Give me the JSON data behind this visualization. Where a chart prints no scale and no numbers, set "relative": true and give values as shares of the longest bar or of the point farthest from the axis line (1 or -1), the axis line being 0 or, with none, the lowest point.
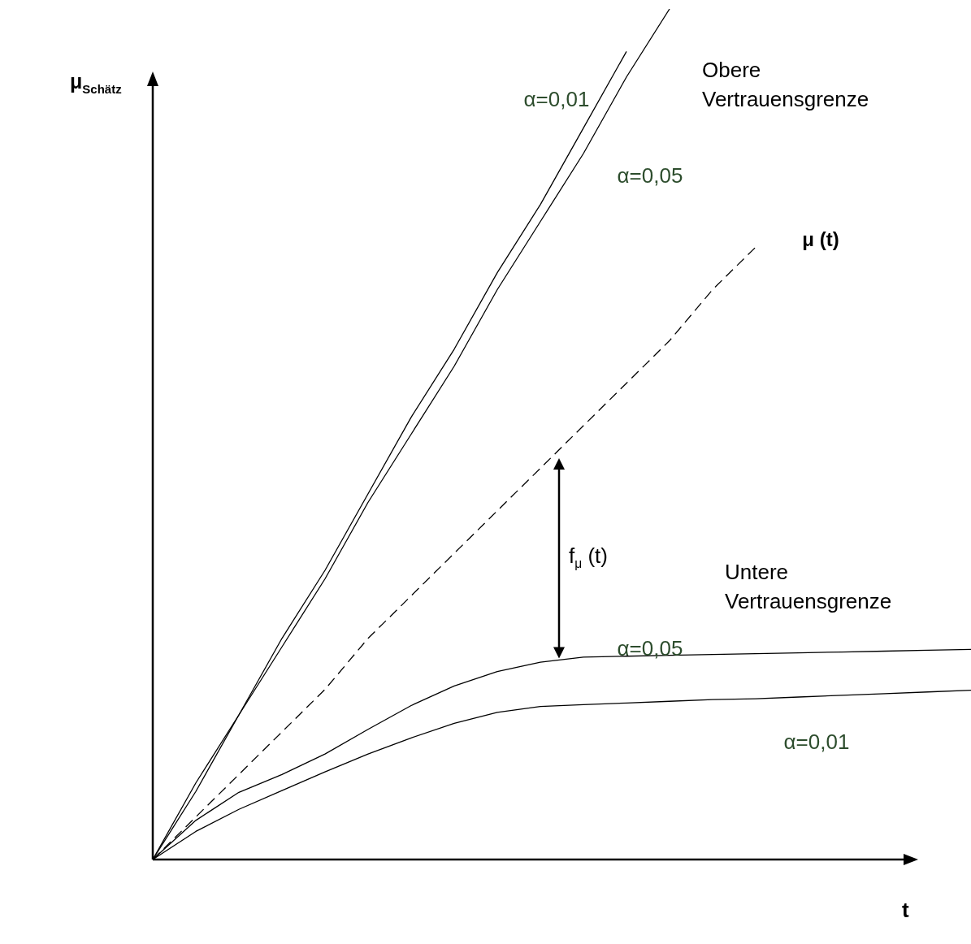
{
  "chart_data": {
    "type": "line",
    "relative": true,
    "xlabel": "t",
    "ylabel": "μ$_{Schätz}$",
    "categories": [
      null,
      null,
      null,
      null,
      null,
      null,
      null,
      null,
      null,
      null,
      null,
      null,
      null,
      null,
      null,
      null,
      null,
      null,
      null,
      null
    ],
    "series": [
      {
        "name": "α=0,01",
        "color": "#000000",
        "values": [
          0,
          0.09,
          0.17,
          0.26,
          0.34,
          0.43,
          0.52,
          0.6,
          0.69,
          0.77,
          0.86,
          0.95,
          null,
          null,
          null,
          null,
          null,
          null,
          null,
          null
        ]
      },
      {
        "name": "α=0,05",
        "color": "#000000",
        "values": [
          0,
          0.08,
          0.17,
          0.25,
          0.33,
          0.42,
          0.5,
          0.58,
          0.67,
          0.75,
          0.83,
          0.92,
          1,
          null,
          null,
          null,
          null,
          null,
          null,
          null
        ]
      },
      {
        "name": "μ (t)",
        "color": "#000000",
        "line_style": "dashed",
        "values": [
          0,
          0.05,
          0.1,
          0.15,
          0.2,
          0.26,
          0.31,
          0.36,
          0.41,
          0.46,
          0.51,
          0.56,
          0.61,
          0.67,
          0.72,
          null,
          null,
          null,
          null,
          null
        ]
      },
      {
        "name": "α=0,05",
        "color": "#000000",
        "values": [
          0,
          0.046,
          0.079,
          0.1,
          0.124,
          0.153,
          0.181,
          0.204,
          0.221,
          0.232,
          0.238,
          0.239,
          0.24,
          0.241,
          0.242,
          0.243,
          0.244,
          0.245,
          0.246,
          0.247
        ]
      },
      {
        "name": "α=0,01",
        "color": "#000000",
        "values": [
          0,
          0.033,
          0.059,
          0.081,
          0.103,
          0.124,
          0.143,
          0.16,
          0.173,
          0.18,
          0.182,
          0.184,
          0.186,
          0.188,
          0.189,
          0.191,
          0.193,
          0.195,
          0.197,
          0.199
        ]
      }
    ],
    "annotations": [
      "Obere Vertrauensgrenze",
      "Untere Vertrauensgrenze",
      "f$_{μ}$ (t)"
    ],
    "legend": false,
    "marker": "none"
  }
}
